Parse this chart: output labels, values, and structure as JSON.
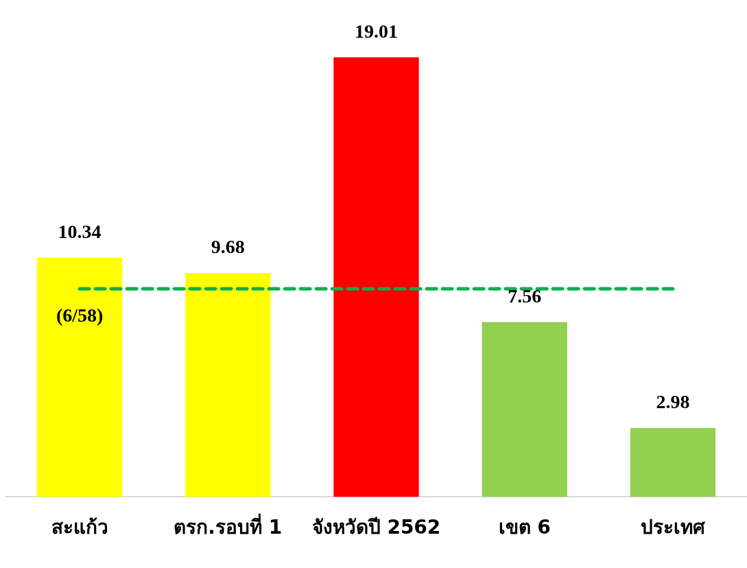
{
  "chart_data": {
    "type": "bar",
    "categories": [
      "สะแก้ว",
      "ตรก.รอบที่ 1",
      "จังหวัดปี 2562",
      "เขต 6",
      "ประเทศ"
    ],
    "values": [
      10.34,
      9.68,
      19.01,
      7.56,
      2.98
    ],
    "colors": [
      "#ffff00",
      "#ffff00",
      "#ff0000",
      "#92d050",
      "#92d050"
    ],
    "tick_labels": "x",
    "grid": false,
    "legend": false,
    "data_labels": true,
    "ref_lines": [
      {
        "axis": "y",
        "value": 9,
        "color": "#00b050",
        "line_style": "dashed"
      }
    ],
    "annotations": [
      "(6/58)"
    ]
  }
}
